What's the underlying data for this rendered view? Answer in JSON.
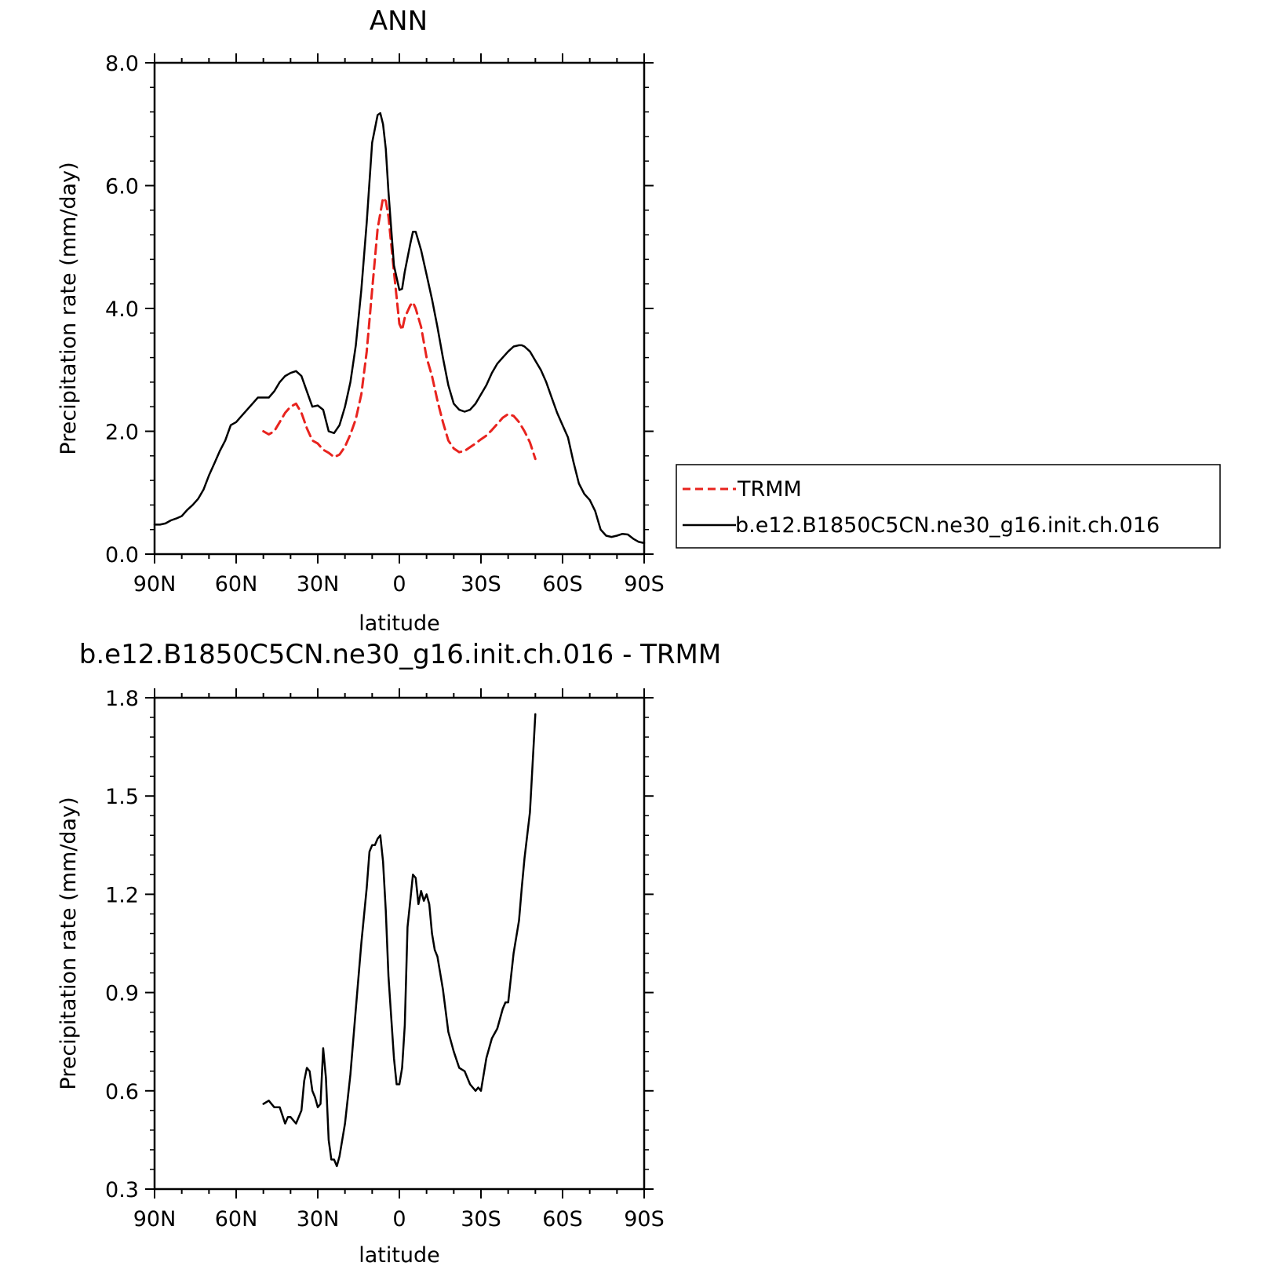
{
  "chart_data": [
    {
      "type": "line",
      "title": "ANN",
      "xlabel": "latitude",
      "ylabel": "Precipitation rate (mm/day)",
      "xlim": [
        90,
        -90
      ],
      "ylim": [
        0,
        8
      ],
      "x_ticks": [
        90,
        60,
        30,
        0,
        -30,
        -60,
        -90
      ],
      "x_tick_labels": [
        "90N",
        "60N",
        "30N",
        "0",
        "30S",
        "60S",
        "90S"
      ],
      "y_ticks": [
        0,
        2,
        4,
        6,
        8
      ],
      "y_tick_labels": [
        "0.0",
        "2.0",
        "4.0",
        "6.0",
        "8.0"
      ],
      "legend": {
        "placement": "right",
        "entries": [
          {
            "label": "TRMM",
            "color": "#e8231e",
            "dash": true
          },
          {
            "label": "b.e12.B1850C5CN.ne30_g16.init.ch.016",
            "color": "#000000",
            "dash": false
          }
        ]
      },
      "series": [
        {
          "name": "TRMM",
          "color": "#e8231e",
          "x": [
            50,
            48,
            46,
            44,
            42,
            40,
            38,
            36,
            34,
            32,
            30,
            28,
            26,
            24,
            22,
            20,
            18,
            16,
            14,
            12,
            10,
            8,
            6,
            5,
            4,
            2,
            0,
            -1,
            -2,
            -4,
            -5,
            -6,
            -8,
            -10,
            -12,
            -14,
            -16,
            -18,
            -20,
            -22,
            -24,
            -26,
            -28,
            -30,
            -32,
            -34,
            -36,
            -38,
            -40,
            -42,
            -44,
            -46,
            -48,
            -50
          ],
          "y": [
            2.0,
            1.95,
            2.0,
            2.15,
            2.3,
            2.4,
            2.45,
            2.3,
            2.05,
            1.85,
            1.8,
            1.7,
            1.65,
            1.58,
            1.62,
            1.75,
            1.95,
            2.2,
            2.6,
            3.3,
            4.3,
            5.3,
            5.8,
            5.75,
            5.5,
            4.6,
            3.75,
            3.65,
            3.85,
            4.05,
            4.1,
            4.0,
            3.7,
            3.2,
            2.9,
            2.5,
            2.15,
            1.85,
            1.72,
            1.66,
            1.68,
            1.74,
            1.8,
            1.87,
            1.93,
            2.02,
            2.12,
            2.22,
            2.28,
            2.25,
            2.15,
            2.0,
            1.82,
            1.55
          ]
        },
        {
          "name": "b.e12.B1850C5CN.ne30_g16.init.ch.016",
          "color": "#000000",
          "x": [
            90,
            88,
            86,
            84,
            82,
            80,
            78,
            76,
            74,
            72,
            70,
            68,
            66,
            64,
            62,
            60,
            58,
            56,
            54,
            52,
            50,
            48,
            46,
            44,
            42,
            40,
            38,
            36,
            34,
            32,
            30,
            28,
            26,
            24,
            22,
            20,
            18,
            16,
            14,
            12,
            10,
            8,
            7,
            6,
            5,
            4,
            2,
            0,
            -1,
            -2,
            -4,
            -5,
            -6,
            -8,
            -10,
            -12,
            -14,
            -16,
            -18,
            -20,
            -22,
            -24,
            -26,
            -28,
            -30,
            -32,
            -34,
            -36,
            -38,
            -40,
            -42,
            -44,
            -45,
            -46,
            -48,
            -50,
            -52,
            -54,
            -56,
            -58,
            -60,
            -62,
            -64,
            -66,
            -68,
            -70,
            -72,
            -74,
            -76,
            -78,
            -80,
            -82,
            -84,
            -86,
            -88,
            -90
          ],
          "y": [
            0.48,
            0.48,
            0.5,
            0.55,
            0.58,
            0.62,
            0.72,
            0.8,
            0.9,
            1.05,
            1.28,
            1.48,
            1.68,
            1.85,
            2.1,
            2.15,
            2.25,
            2.35,
            2.45,
            2.55,
            2.55,
            2.55,
            2.65,
            2.8,
            2.9,
            2.95,
            2.98,
            2.9,
            2.65,
            2.4,
            2.42,
            2.35,
            2.0,
            1.97,
            2.1,
            2.4,
            2.8,
            3.4,
            4.3,
            5.4,
            6.7,
            7.15,
            7.18,
            7.0,
            6.6,
            5.9,
            4.7,
            4.3,
            4.32,
            4.6,
            5.05,
            5.25,
            5.25,
            4.95,
            4.55,
            4.15,
            3.7,
            3.2,
            2.75,
            2.45,
            2.35,
            2.32,
            2.35,
            2.45,
            2.6,
            2.75,
            2.95,
            3.1,
            3.2,
            3.3,
            3.38,
            3.4,
            3.4,
            3.38,
            3.3,
            3.15,
            3.0,
            2.8,
            2.55,
            2.3,
            2.1,
            1.9,
            1.5,
            1.15,
            0.98,
            0.88,
            0.7,
            0.4,
            0.3,
            0.28,
            0.3,
            0.33,
            0.32,
            0.25,
            0.2,
            0.18
          ]
        }
      ]
    },
    {
      "type": "line",
      "title": "b.e12.B1850C5CN.ne30_g16.init.ch.016 - TRMM",
      "xlabel": "latitude",
      "ylabel": "Precipitation rate (mm/day)",
      "xlim": [
        90,
        -90
      ],
      "ylim": [
        0.3,
        1.8
      ],
      "x_ticks": [
        90,
        60,
        30,
        0,
        -30,
        -60,
        -90
      ],
      "x_tick_labels": [
        "90N",
        "60N",
        "30N",
        "0",
        "30S",
        "60S",
        "90S"
      ],
      "y_ticks": [
        0.3,
        0.6,
        0.9,
        1.2,
        1.5,
        1.8
      ],
      "y_tick_labels": [
        "0.3",
        "0.6",
        "0.9",
        "1.2",
        "1.5",
        "1.8"
      ],
      "series": [
        {
          "color": "#000000",
          "x": [
            50,
            48,
            46,
            44,
            42,
            41,
            40,
            38,
            36,
            35,
            34,
            33,
            32,
            31,
            30,
            29,
            28,
            27,
            26,
            25,
            24,
            23,
            22,
            20,
            18,
            16,
            14,
            12,
            11,
            10,
            9,
            8,
            7,
            6,
            5,
            4,
            2,
            1,
            0,
            -1,
            -2,
            -3,
            -4,
            -5,
            -6,
            -7,
            -8,
            -9,
            -10,
            -11,
            -12,
            -13,
            -14,
            -16,
            -18,
            -20,
            -22,
            -24,
            -26,
            -28,
            -29,
            -30,
            -32,
            -34,
            -36,
            -38,
            -39,
            -40,
            -42,
            -44,
            -45,
            -46,
            -48,
            -50
          ],
          "y": [
            0.56,
            0.57,
            0.55,
            0.55,
            0.5,
            0.52,
            0.52,
            0.5,
            0.54,
            0.63,
            0.67,
            0.66,
            0.6,
            0.58,
            0.55,
            0.56,
            0.73,
            0.64,
            0.45,
            0.39,
            0.39,
            0.37,
            0.4,
            0.5,
            0.65,
            0.85,
            1.05,
            1.22,
            1.33,
            1.35,
            1.35,
            1.37,
            1.38,
            1.3,
            1.15,
            0.95,
            0.7,
            0.62,
            0.62,
            0.67,
            0.8,
            1.1,
            1.18,
            1.26,
            1.25,
            1.17,
            1.21,
            1.18,
            1.2,
            1.17,
            1.08,
            1.03,
            1.01,
            0.91,
            0.78,
            0.72,
            0.67,
            0.66,
            0.62,
            0.6,
            0.61,
            0.6,
            0.7,
            0.76,
            0.79,
            0.85,
            0.87,
            0.87,
            1.02,
            1.12,
            1.22,
            1.31,
            1.45,
            1.75
          ]
        }
      ]
    }
  ]
}
